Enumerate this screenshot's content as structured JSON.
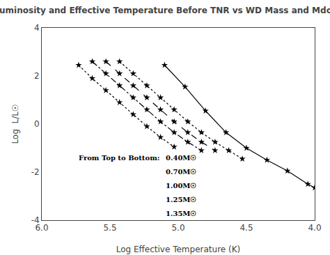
{
  "chart_data": {
    "type": "line",
    "title": "Luminosity and Effective Temperature Before TNR vs WD Mass and Mdot",
    "x_label": "Log Effective Temperature (K)",
    "y_label": "Log  L/L☉",
    "xlim": [
      6.0,
      4.0
    ],
    "ylim": [
      -4,
      4
    ],
    "xticks": [
      {
        "value": 6.0,
        "label": "6.0"
      },
      5.5,
      {
        "value": 5.0,
        "label": "5.0"
      },
      4.5,
      {
        "value": 4.0,
        "label": "4.0"
      }
    ],
    "yticks": [
      -4,
      -2,
      0,
      2,
      4
    ],
    "grid": false,
    "color": "black",
    "marker": "star",
    "annotations": [
      "From Top to Bottom:",
      "0.40M☉",
      "0.70M☉",
      "1.00M☉",
      "1.25M☉",
      "1.35M☉"
    ],
    "series": [
      {
        "line_style": "dotted",
        "x": [
          5.73,
          5.63,
          5.53,
          5.43,
          5.33,
          5.23,
          5.13,
          5.03
        ],
        "values": [
          2.45,
          1.9,
          1.4,
          0.9,
          0.4,
          -0.1,
          -0.55,
          -0.95
        ]
      },
      {
        "line_style": "dashdot",
        "x": [
          5.63,
          5.53,
          5.43,
          5.33,
          5.23,
          5.13,
          5.03,
          4.93,
          4.83
        ],
        "values": [
          2.6,
          2.1,
          1.6,
          1.1,
          0.6,
          0.1,
          -0.35,
          -0.75,
          -1.1
        ]
      },
      {
        "line_style": "dashed",
        "x": [
          5.53,
          5.43,
          5.33,
          5.23,
          5.13,
          5.03,
          4.93,
          4.83,
          4.73
        ],
        "values": [
          2.6,
          2.1,
          1.6,
          1.1,
          0.6,
          0.1,
          -0.35,
          -0.75,
          -1.1
        ]
      },
      {
        "line_style": "dotted",
        "x": [
          5.43,
          5.33,
          5.23,
          5.13,
          5.03,
          4.93,
          4.83,
          4.73,
          4.63,
          4.53
        ],
        "values": [
          2.6,
          2.1,
          1.6,
          1.1,
          0.6,
          0.1,
          -0.35,
          -0.75,
          -1.1,
          -1.45
        ]
      },
      {
        "line_style": "solid",
        "x": [
          5.1,
          4.95,
          4.8,
          4.65,
          4.5,
          4.35,
          4.2,
          4.05,
          4.0
        ],
        "values": [
          2.45,
          1.55,
          0.55,
          -0.35,
          -1.0,
          -1.5,
          -1.95,
          -2.5,
          -2.65
        ]
      }
    ]
  }
}
